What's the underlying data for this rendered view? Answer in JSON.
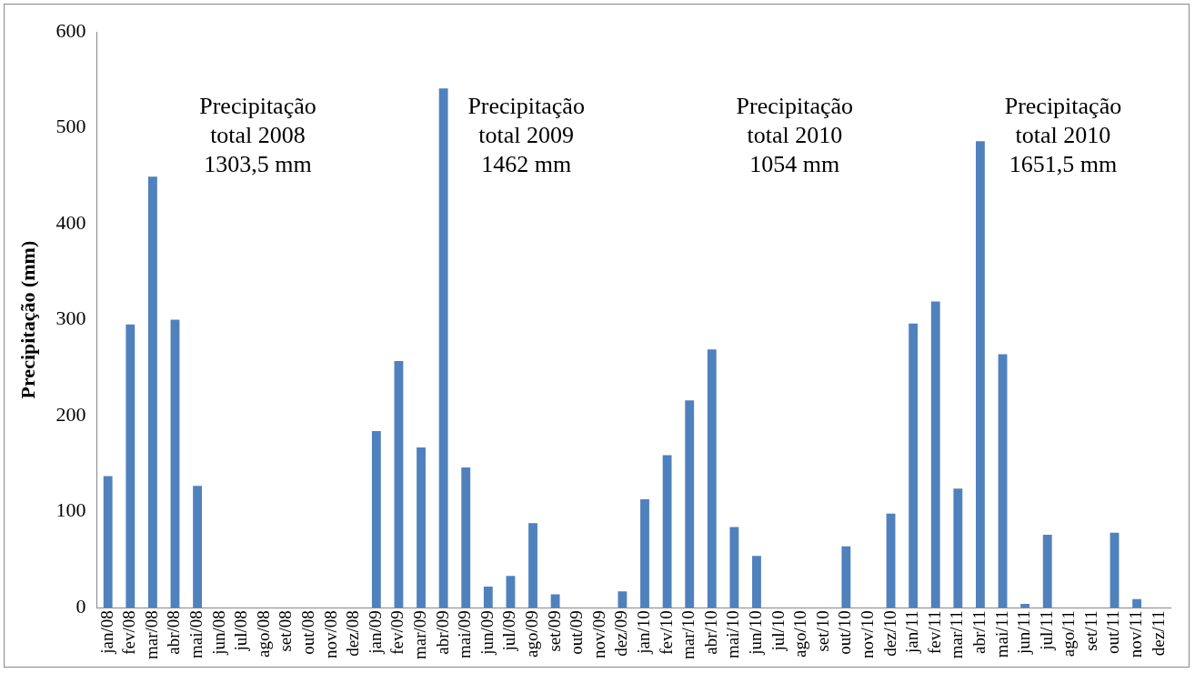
{
  "chart_data": {
    "type": "bar",
    "ylabel": "Precipitação (mm)",
    "categories": [
      "jan/08",
      "fev/08",
      "mar/08",
      "abr/08",
      "mai/08",
      "jun/08",
      "jul/08",
      "ago/08",
      "set/08",
      "out/08",
      "nov/08",
      "dez/08",
      "jan/09",
      "fev/09",
      "mar/09",
      "abr/09",
      "mai/09",
      "jun/09",
      "jul/09",
      "ago/09",
      "set/09",
      "out/09",
      "nov/09",
      "dez/09",
      "jan/10",
      "fev/10",
      "mar/10",
      "abr/10",
      "mai/10",
      "jun/10",
      "jul/10",
      "ago/10",
      "set/10",
      "out/10",
      "nov/10",
      "dez/10",
      "jan/11",
      "fev/11",
      "mar/11",
      "abr/11",
      "mai/11",
      "jun/11",
      "jul/11",
      "ago/11",
      "set/11",
      "out/11",
      "nov/11",
      "dez/11"
    ],
    "values": [
      137,
      295,
      449,
      300,
      127,
      0,
      0,
      0,
      0,
      0,
      0,
      0,
      184,
      257,
      167,
      541,
      146,
      22,
      33,
      88,
      14,
      0,
      0,
      17,
      113,
      159,
      216,
      269,
      84,
      54,
      0,
      0,
      0,
      64,
      0,
      98,
      296,
      319,
      124,
      486,
      264,
      4,
      76,
      0,
      0,
      78,
      9,
      0
    ],
    "color": "#4f81bd",
    "ylim": [
      0,
      600
    ],
    "yticks": [
      0,
      100,
      200,
      300,
      400,
      500,
      600
    ],
    "grid": false,
    "legend": false,
    "annotations": [
      "Precipitação\ntotal 2008\n1303,5 mm",
      "Precipitação\ntotal 2009\n1462 mm",
      "Precipitação\ntotal 2010\n1054 mm",
      "Precipitação\ntotal 2010\n1651,5 mm"
    ]
  }
}
